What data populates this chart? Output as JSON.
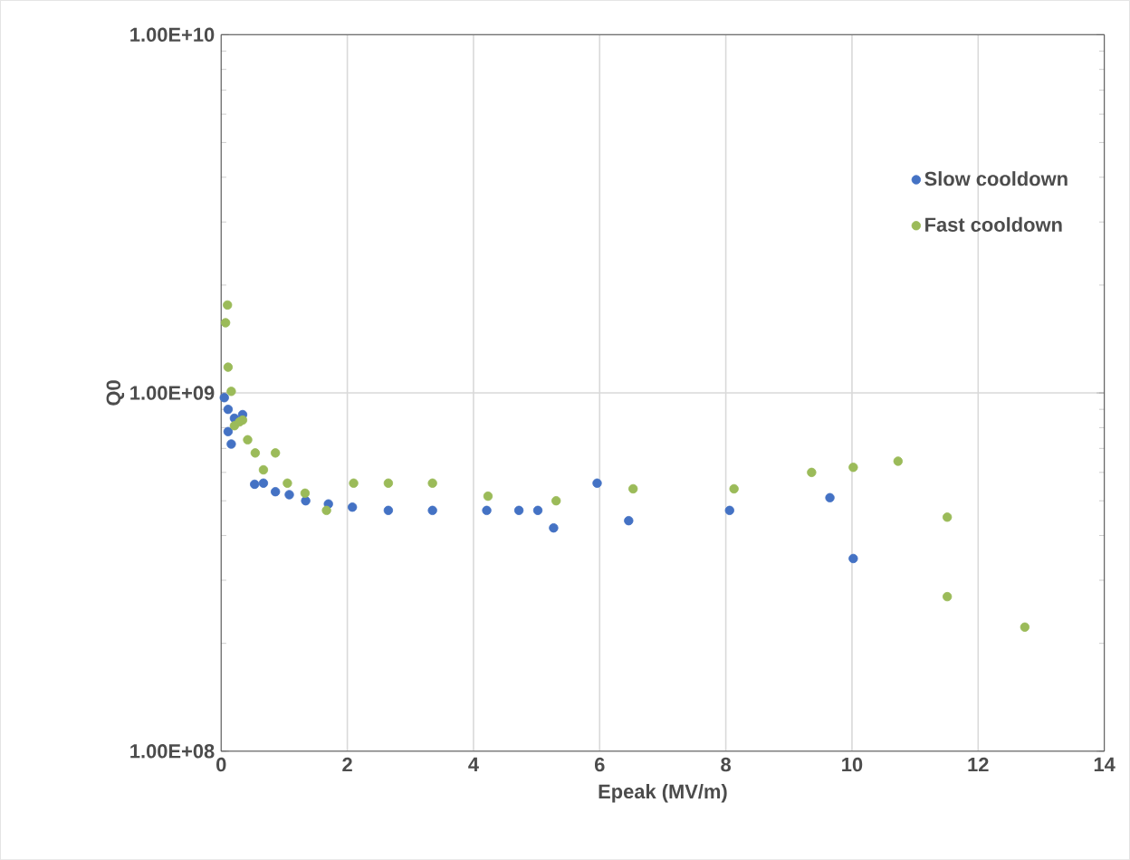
{
  "chart_data": {
    "type": "scatter",
    "xlabel": "Epeak (MV/m)",
    "ylabel": "Q0",
    "xlim": [
      0,
      14
    ],
    "xticks": [
      0,
      2,
      4,
      6,
      8,
      10,
      12,
      14
    ],
    "ylim": [
      100000000.0,
      10000000000.0
    ],
    "yticks": [
      {
        "value": 100000000.0,
        "label": "1.00E+08"
      },
      {
        "value": 1000000000.0,
        "label": "1.00E+09"
      },
      {
        "value": 10000000000.0,
        "label": "1.00E+10"
      }
    ],
    "log": "y",
    "grid": true,
    "legend": "top right",
    "marker": "circle",
    "series": [
      {
        "name": "Slow cooldown",
        "color": "#4472c4",
        "x": [
          0.05,
          0.07,
          0.11,
          0.11,
          0.16,
          0.21,
          0.34,
          0.53,
          0.67,
          0.86,
          1.08,
          1.34,
          1.7,
          2.08,
          2.65,
          3.35,
          4.21,
          4.72,
          5.02,
          5.27,
          5.96,
          6.46,
          8.06,
          9.65,
          10.02
        ],
        "values": [
          970000000.0,
          null,
          900000000.0,
          780000000.0,
          720000000.0,
          850000000.0,
          870000000.0,
          556000000.0,
          560000000.0,
          530000000.0,
          520000000.0,
          500000000.0,
          490000000.0,
          480000000.0,
          470000000.0,
          470000000.0,
          470000000.0,
          470000000.0,
          470000000.0,
          420000000.0,
          560000000.0,
          440000000.0,
          470000000.0,
          510000000.0,
          345000000.0
        ]
      },
      {
        "name": "Fast cooldown",
        "color": "#9bbb59",
        "x": [
          0.1,
          0.07,
          0.11,
          0.16,
          0.21,
          0.29,
          0.34,
          0.42,
          0.54,
          0.67,
          0.86,
          1.05,
          1.33,
          1.67,
          2.1,
          2.65,
          3.35,
          4.23,
          5.31,
          6.53,
          8.13,
          9.36,
          10.02,
          10.73,
          11.51,
          11.51,
          12.74
        ],
        "values": [
          1760000000.0,
          1570000000.0,
          1180000000.0,
          1010000000.0,
          810000000.0,
          830000000.0,
          840000000.0,
          740000000.0,
          680000000.0,
          610000000.0,
          680000000.0,
          560000000.0,
          525000000.0,
          470000000.0,
          560000000.0,
          560000000.0,
          560000000.0,
          515000000.0,
          500000000.0,
          540000000.0,
          540000000.0,
          600000000.0,
          620000000.0,
          645000000.0,
          450000000.0,
          270000000.0,
          222000000.0
        ]
      }
    ]
  }
}
